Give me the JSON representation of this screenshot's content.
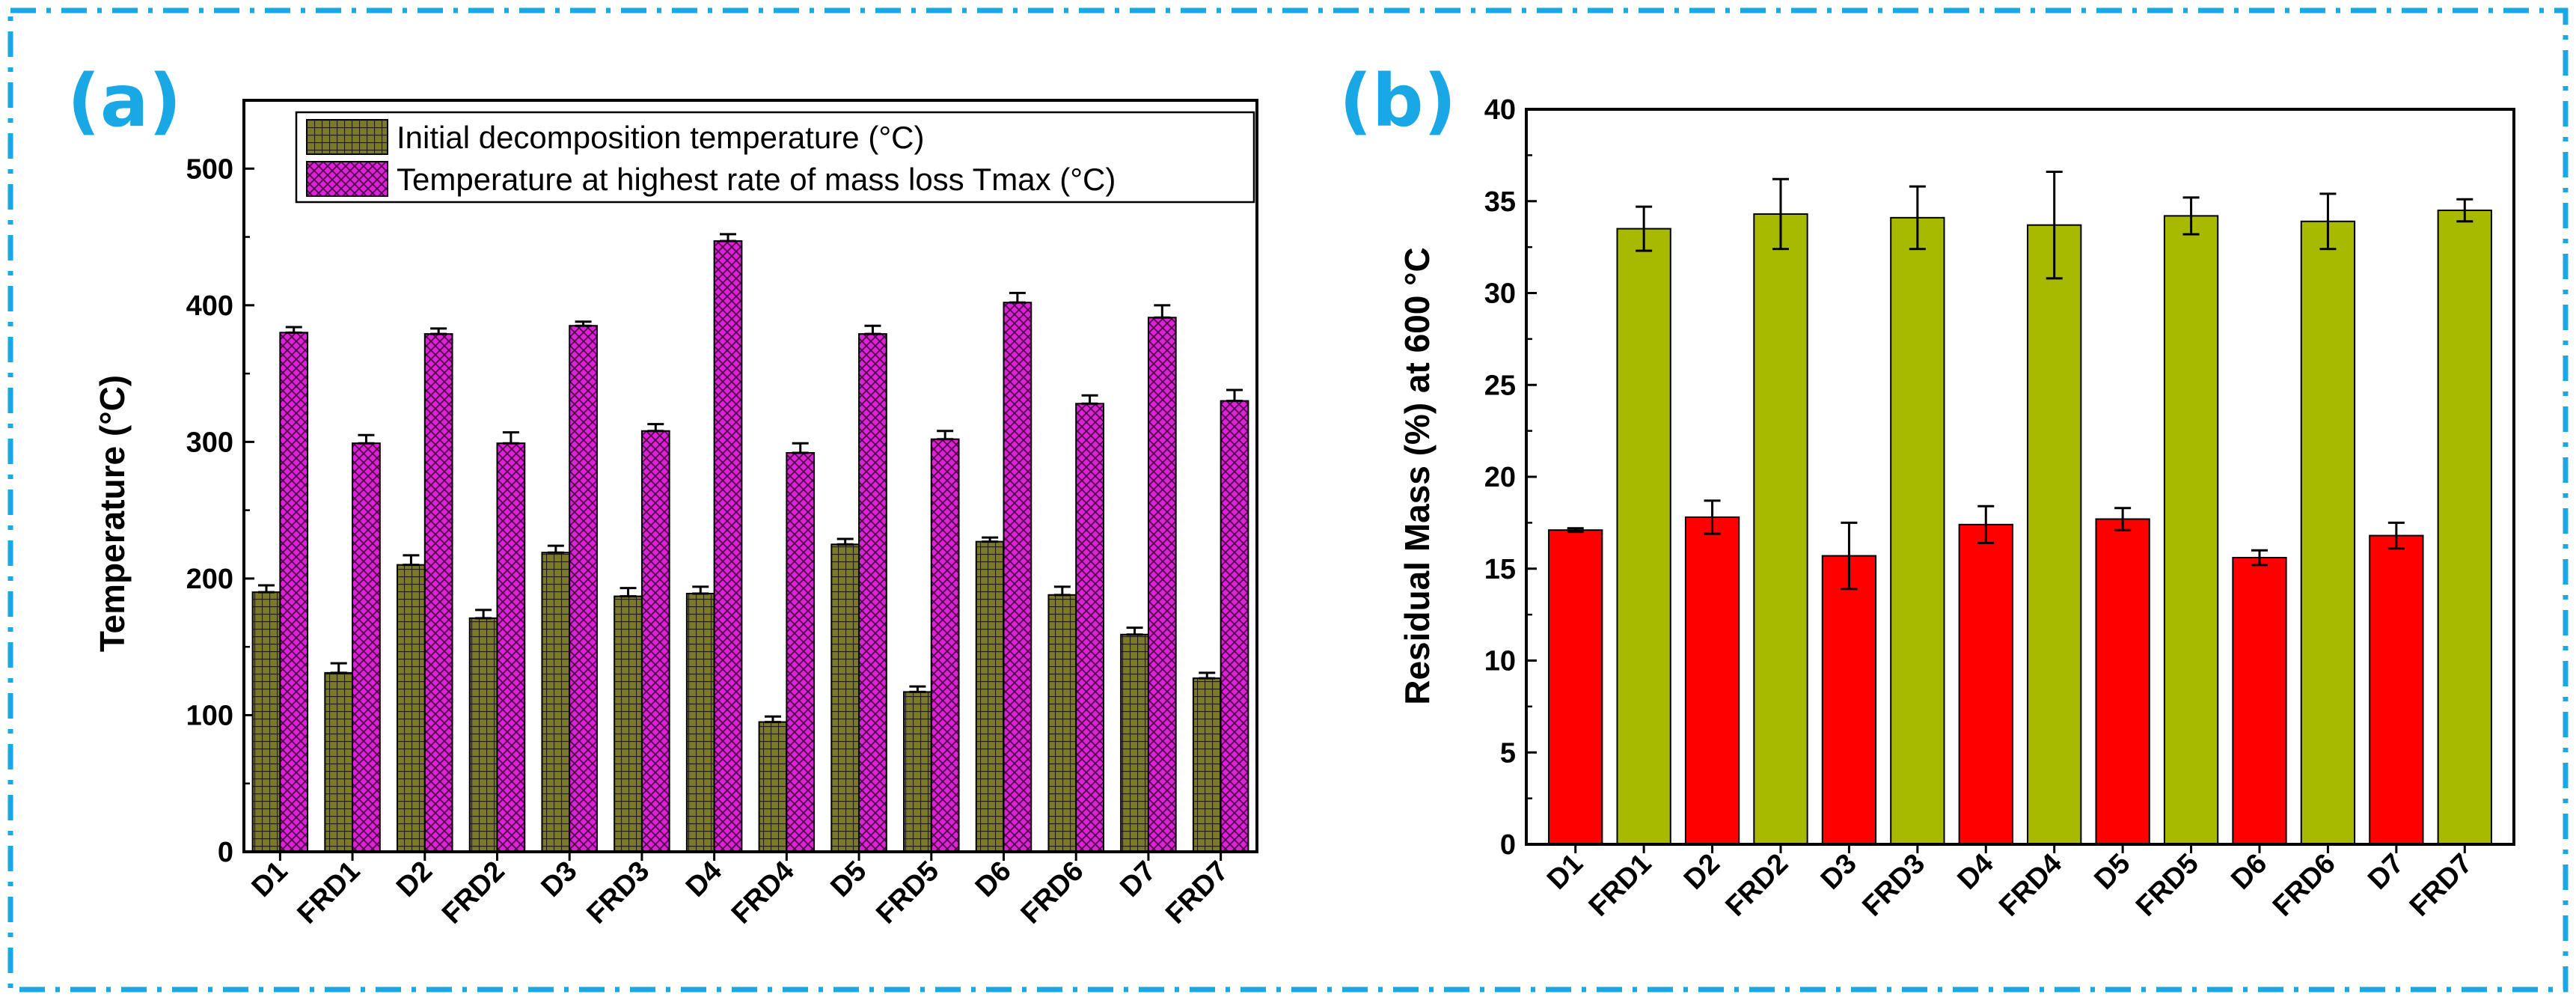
{
  "frame_color": "#1aa7e6",
  "chart_data": [
    {
      "panel": "(a)",
      "type": "bar",
      "title": "",
      "xlabel": "",
      "ylabel": "Temperature (°C)",
      "ylim": [
        0,
        550
      ],
      "yticks": [
        0,
        100,
        200,
        300,
        400,
        500
      ],
      "categories": [
        "D1",
        "FRD1",
        "D2",
        "FRD2",
        "D3",
        "FRD3",
        "D4",
        "FRD4",
        "D5",
        "FRD5",
        "D6",
        "FRD6",
        "D7",
        "FRD7"
      ],
      "legend_position": "top-right",
      "series": [
        {
          "name": "Initial decomposition temperature (°C)",
          "color": "#7a7a2a",
          "pattern": "grid",
          "values": [
            190,
            131,
            210,
            171,
            219,
            187,
            189,
            95,
            225,
            117,
            227,
            188,
            159,
            127
          ],
          "errors": [
            5,
            7,
            7,
            6,
            5,
            6,
            5,
            4,
            4,
            4,
            3,
            6,
            5,
            4
          ]
        },
        {
          "name": "Temperature at highest rate of mass loss Tmax (°C)",
          "color": "#e020d8",
          "pattern": "crosshatch",
          "values": [
            380,
            299,
            379,
            299,
            385,
            308,
            447,
            292,
            379,
            302,
            402,
            328,
            391,
            330
          ],
          "errors": [
            4,
            6,
            4,
            8,
            3,
            5,
            5,
            7,
            6,
            6,
            7,
            6,
            9,
            8
          ]
        }
      ]
    },
    {
      "panel": "(b)",
      "type": "bar",
      "title": "",
      "xlabel": "",
      "ylabel": "Residual Mass (%) at 600 °C",
      "ylim": [
        0,
        40
      ],
      "yticks": [
        0,
        5,
        10,
        15,
        20,
        25,
        30,
        35,
        40
      ],
      "categories": [
        "D1",
        "FRD1",
        "D2",
        "FRD2",
        "D3",
        "FRD3",
        "D4",
        "FRD4",
        "D5",
        "FRD5",
        "D6",
        "FRD6",
        "D7",
        "FRD7"
      ],
      "values": [
        17.1,
        33.5,
        17.8,
        34.3,
        15.7,
        34.1,
        17.4,
        33.7,
        17.7,
        34.2,
        15.6,
        33.9,
        16.8,
        34.5
      ],
      "errors": [
        0.1,
        1.2,
        0.9,
        1.9,
        1.8,
        1.7,
        1.0,
        2.9,
        0.6,
        1.0,
        0.4,
        1.5,
        0.7,
        0.6
      ],
      "colors": [
        "#ff0000",
        "#a8ba00"
      ]
    }
  ]
}
